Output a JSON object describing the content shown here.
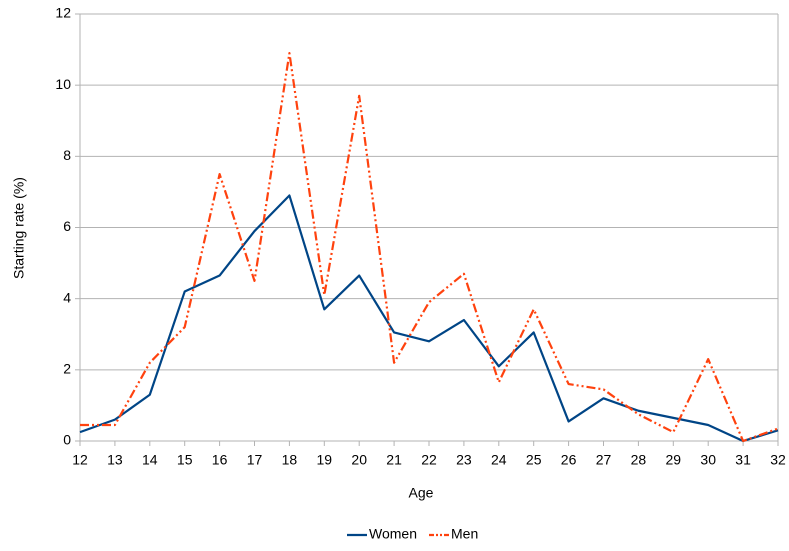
{
  "chart_data": {
    "type": "line",
    "xlabel": "Age",
    "ylabel": "Starting rate (%)",
    "x": [
      12,
      13,
      14,
      15,
      16,
      17,
      18,
      19,
      20,
      21,
      22,
      23,
      24,
      25,
      26,
      27,
      28,
      29,
      30,
      31,
      32
    ],
    "series": [
      {
        "name": "Women",
        "color": "#004586",
        "dash": "solid",
        "values": [
          0.25,
          0.6,
          1.3,
          4.2,
          4.65,
          5.9,
          6.9,
          3.7,
          4.65,
          3.05,
          2.8,
          3.4,
          2.1,
          3.05,
          0.55,
          1.2,
          0.85,
          0.65,
          0.45,
          0,
          0.3
        ]
      },
      {
        "name": "Men",
        "color": "#ff420e",
        "dash": "dash-dot-dot",
        "values": [
          0.45,
          0.45,
          2.2,
          3.2,
          7.5,
          4.5,
          10.9,
          4.1,
          9.7,
          2.2,
          3.9,
          4.7,
          1.65,
          3.7,
          1.6,
          1.45,
          0.75,
          0.25,
          2.3,
          0,
          0.35
        ]
      }
    ],
    "xlim": [
      12,
      32
    ],
    "xticks": [
      12,
      13,
      14,
      15,
      16,
      17,
      18,
      19,
      20,
      21,
      22,
      23,
      24,
      25,
      26,
      27,
      28,
      29,
      30,
      31,
      32
    ],
    "ylim": [
      0,
      12
    ],
    "yticks": [
      0,
      2,
      4,
      6,
      8,
      10,
      12
    ],
    "grid": true,
    "legend": "bottom"
  }
}
